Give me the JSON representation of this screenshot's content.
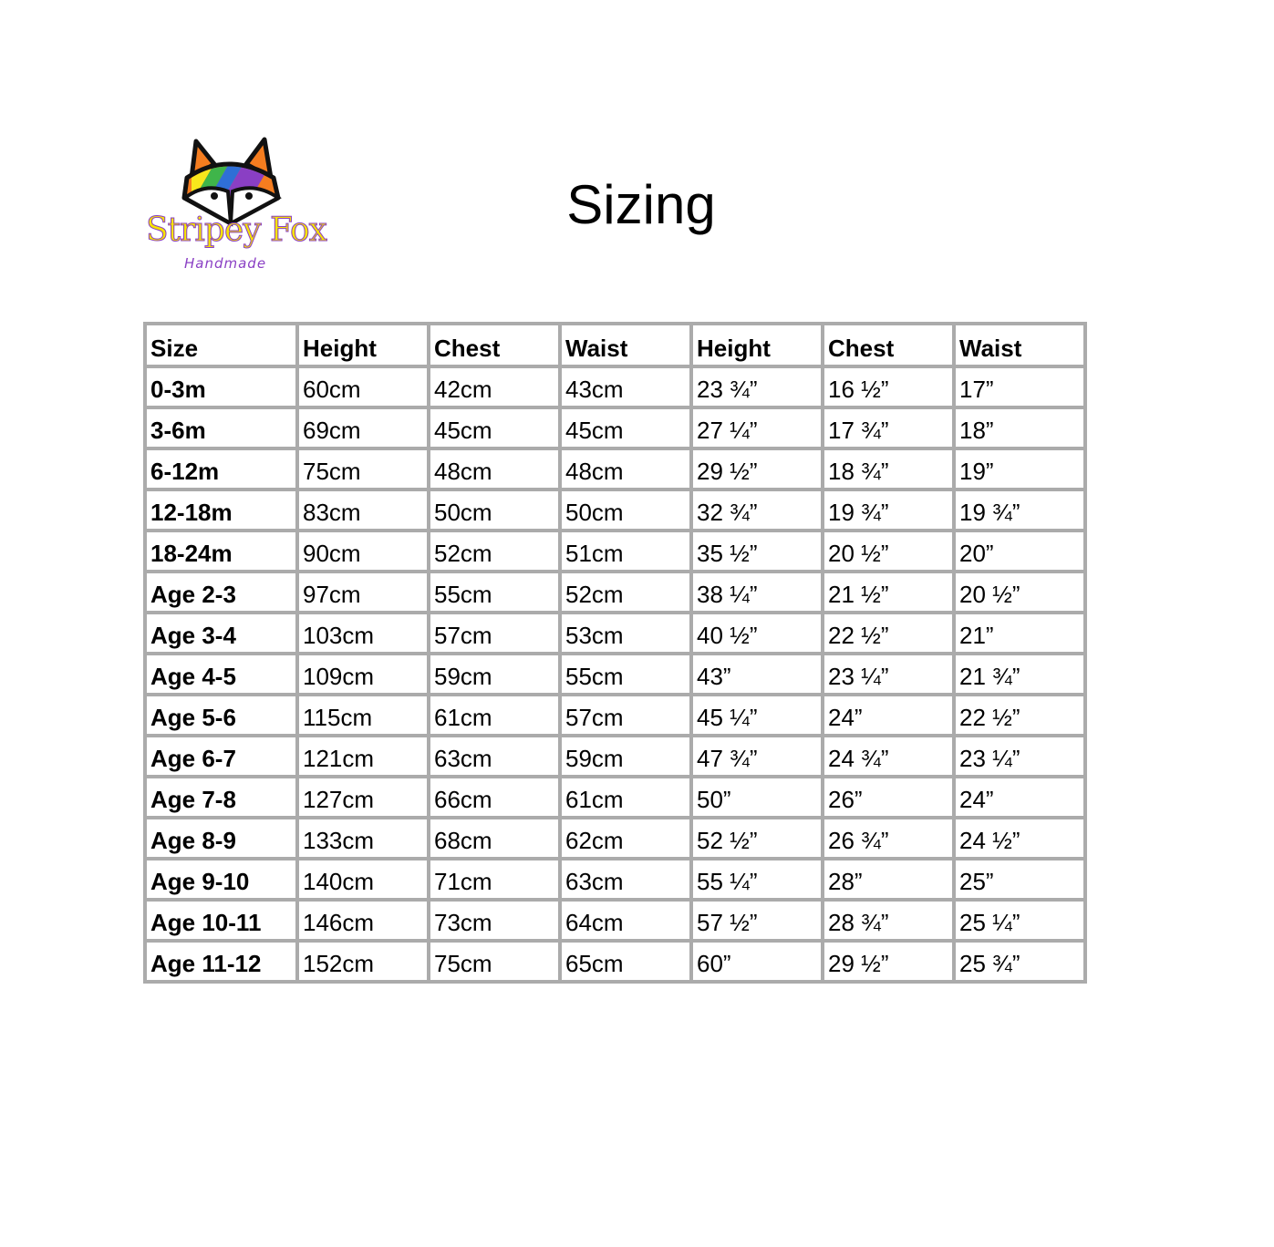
{
  "logo": {
    "name": "Stripey Fox",
    "tagline": "Handmade",
    "colors": [
      "#e8202a",
      "#f57d1f",
      "#f8e71c",
      "#3fb54a",
      "#2f6fd6",
      "#8a3fc4"
    ]
  },
  "title": "Sizing",
  "table": {
    "headers": [
      "Size",
      "Height",
      "Chest",
      "Waist",
      "Height",
      "Chest",
      "Waist"
    ],
    "rows": [
      [
        "0-3m",
        "60cm",
        "42cm",
        "43cm",
        "23 ¾”",
        "16 ½”",
        "17”"
      ],
      [
        "3-6m",
        "69cm",
        "45cm",
        "45cm",
        "27 ¼”",
        "17 ¾”",
        "18”"
      ],
      [
        "6-12m",
        "75cm",
        "48cm",
        "48cm",
        "29 ½”",
        "18 ¾”",
        "19”"
      ],
      [
        "12-18m",
        "83cm",
        "50cm",
        "50cm",
        "32 ¾”",
        "19 ¾”",
        "19 ¾”"
      ],
      [
        "18-24m",
        "90cm",
        "52cm",
        "51cm",
        "35 ½”",
        "20 ½”",
        "20”"
      ],
      [
        "Age 2-3",
        "97cm",
        "55cm",
        "52cm",
        "38 ¼”",
        "21 ½”",
        "20 ½”"
      ],
      [
        "Age 3-4",
        "103cm",
        "57cm",
        "53cm",
        "40 ½”",
        "22 ½”",
        "21”"
      ],
      [
        "Age 4-5",
        "109cm",
        "59cm",
        "55cm",
        "43”",
        "23 ¼”",
        "21 ¾”"
      ],
      [
        "Age 5-6",
        "115cm",
        "61cm",
        "57cm",
        "45 ¼”",
        "24”",
        "22 ½”"
      ],
      [
        "Age 6-7",
        "121cm",
        "63cm",
        "59cm",
        "47 ¾”",
        "24 ¾”",
        "23 ¼”"
      ],
      [
        "Age 7-8",
        "127cm",
        "66cm",
        "61cm",
        "50”",
        "26”",
        "24”"
      ],
      [
        "Age 8-9",
        "133cm",
        "68cm",
        "62cm",
        "52 ½”",
        "26 ¾”",
        "24 ½”"
      ],
      [
        "Age 9-10",
        "140cm",
        "71cm",
        "63cm",
        "55 ¼”",
        "28”",
        "25”"
      ],
      [
        "Age 10-11",
        "146cm",
        "73cm",
        "64cm",
        "57 ½”",
        "28 ¾”",
        "25 ¼”"
      ],
      [
        "Age 11-12",
        "152cm",
        "75cm",
        "65cm",
        "60”",
        "29 ½”",
        "25 ¾”"
      ]
    ]
  }
}
